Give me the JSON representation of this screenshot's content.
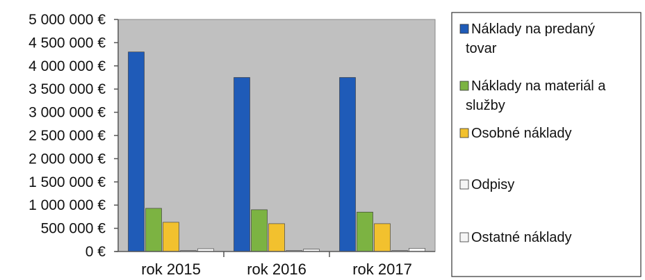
{
  "chart_data": {
    "type": "bar",
    "categories": [
      "rok 2015",
      "rok 2016",
      "rok 2017"
    ],
    "ylim": [
      0,
      5000000
    ],
    "y_ticks": [
      {
        "value": 0,
        "label": "0 €"
      },
      {
        "value": 500000,
        "label": "500 000 €"
      },
      {
        "value": 1000000,
        "label": "1 000 000 €"
      },
      {
        "value": 1500000,
        "label": "1 500 000 €"
      },
      {
        "value": 2000000,
        "label": "2 000 000 €"
      },
      {
        "value": 2500000,
        "label": "2 500 000 €"
      },
      {
        "value": 3000000,
        "label": "3 000 000 €"
      },
      {
        "value": 3500000,
        "label": "3 500 000 €"
      },
      {
        "value": 4000000,
        "label": "4 000 000 €"
      },
      {
        "value": 4500000,
        "label": "4 500 000 €"
      },
      {
        "value": 5000000,
        "label": "5 000 000 €"
      }
    ],
    "grid": false,
    "legend_position": "right",
    "plot_background": "#c0c0c0",
    "series": [
      {
        "name_lines": [
          "Náklady na predaný",
          "tovar"
        ],
        "color": "#1f5bb8",
        "values": [
          4300000,
          3750000,
          3750000
        ]
      },
      {
        "name_lines": [
          "Náklady na materiál a",
          "služby"
        ],
        "color": "#7cb342",
        "values": [
          930000,
          900000,
          850000
        ]
      },
      {
        "name_lines": [
          "Osobné náklady"
        ],
        "color": "#f2c12e",
        "values": [
          630000,
          600000,
          600000
        ]
      },
      {
        "name_lines": [
          "Odpisy"
        ],
        "color": "#f5f5f5",
        "values": [
          20000,
          20000,
          20000
        ]
      },
      {
        "name_lines": [
          "Ostatné náklady"
        ],
        "color": "#f5f5f5",
        "values": [
          60000,
          50000,
          70000
        ]
      }
    ]
  }
}
